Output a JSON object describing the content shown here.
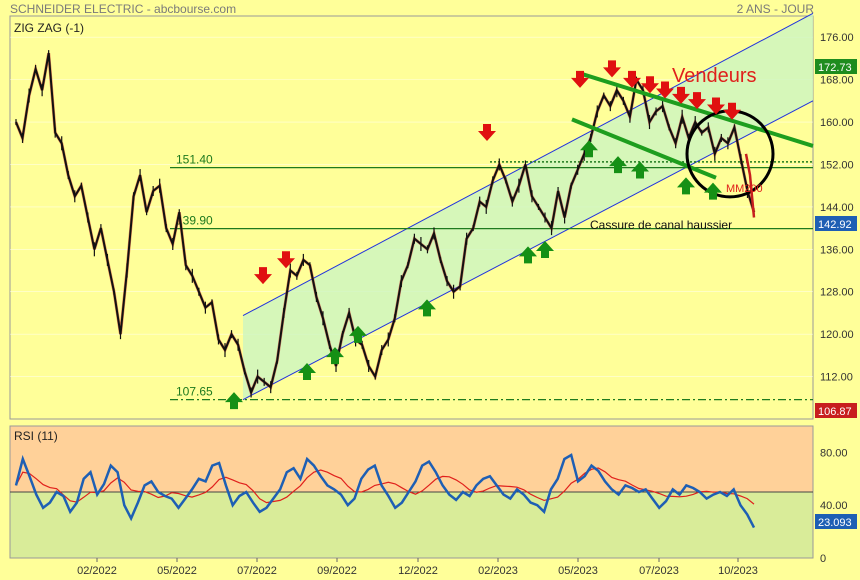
{
  "header": {
    "source": "SCHNEIDER ELECTRIC - abcbourse.com",
    "period": "2 ANS - JOUR"
  },
  "chart_data": [
    {
      "type": "line",
      "title": "ZIG ZAG (-1)",
      "ylim": [
        104,
        180
      ],
      "y_ticks": [
        "176.00",
        "168.00",
        "160.00",
        "152.00",
        "144.00",
        "136.00",
        "128.00",
        "120.00",
        "112.00"
      ],
      "x_ticks": [
        "02/2022",
        "05/2022",
        "07/2022",
        "09/2022",
        "12/2022",
        "02/2023",
        "05/2023",
        "07/2023",
        "10/2023"
      ],
      "last_price": "142.92",
      "channel_top_label": "172.73",
      "support_label": "106.87",
      "levels": [
        {
          "label": "151.40",
          "value": 151.4
        },
        {
          "label": "139.90",
          "value": 139.9
        },
        {
          "label": "107.65",
          "value": 107.65
        }
      ],
      "annotations": {
        "sellers": "Vendeurs",
        "ma": "MM200",
        "breakout": "Cassure de canal haussier"
      },
      "series": [
        {
          "values": [
            160,
            157,
            165,
            170,
            166,
            173,
            158,
            156,
            150,
            146,
            148,
            142,
            136,
            140,
            134,
            128,
            120,
            132,
            146,
            150,
            143,
            147,
            148,
            140,
            137,
            143,
            133,
            131,
            128,
            125,
            126,
            119,
            117,
            120,
            118,
            113,
            109,
            112,
            111,
            110,
            115,
            124,
            132,
            131,
            134,
            133,
            127,
            123,
            118,
            114,
            120,
            124,
            119,
            118,
            114,
            112,
            117,
            119,
            123,
            130,
            133,
            138,
            137,
            136,
            139,
            134,
            130,
            128,
            129,
            138,
            140,
            145,
            144,
            149,
            152,
            149,
            145,
            148,
            152,
            146,
            144,
            142,
            140,
            147,
            142,
            148,
            151,
            154,
            157,
            162,
            165,
            163,
            166,
            164,
            161,
            168,
            166,
            160,
            162,
            163,
            159,
            156,
            161,
            157,
            160,
            158,
            159,
            154,
            157,
            156,
            159,
            153,
            147,
            143
          ]
        }
      ]
    },
    {
      "type": "line",
      "title": "RSI (11)",
      "ylim": [
        0,
        100
      ],
      "y_ticks": [
        "80.00",
        "40.00",
        "0"
      ],
      "last_value": "23.093",
      "series": [
        {
          "values": [
            55,
            75,
            62,
            48,
            38,
            42,
            50,
            47,
            35,
            42,
            60,
            65,
            48,
            56,
            70,
            65,
            40,
            30,
            42,
            55,
            58,
            50,
            47,
            45,
            38,
            45,
            52,
            60,
            58,
            70,
            72,
            55,
            40,
            47,
            50,
            42,
            35,
            38,
            45,
            52,
            65,
            68,
            60,
            75,
            70,
            62,
            55,
            52,
            48,
            40,
            45,
            60,
            67,
            70,
            55,
            47,
            38,
            42,
            50,
            58,
            70,
            73,
            65,
            55,
            48,
            44,
            50,
            47,
            55,
            60,
            62,
            55,
            48,
            45,
            52,
            48,
            42,
            40,
            35,
            52,
            60,
            75,
            78,
            58,
            62,
            70,
            66,
            58,
            52,
            48,
            55,
            53,
            50,
            52,
            45,
            38,
            43,
            52,
            48,
            55,
            53,
            50,
            45,
            48,
            50,
            47,
            52,
            40,
            33,
            23
          ]
        }
      ]
    }
  ]
}
